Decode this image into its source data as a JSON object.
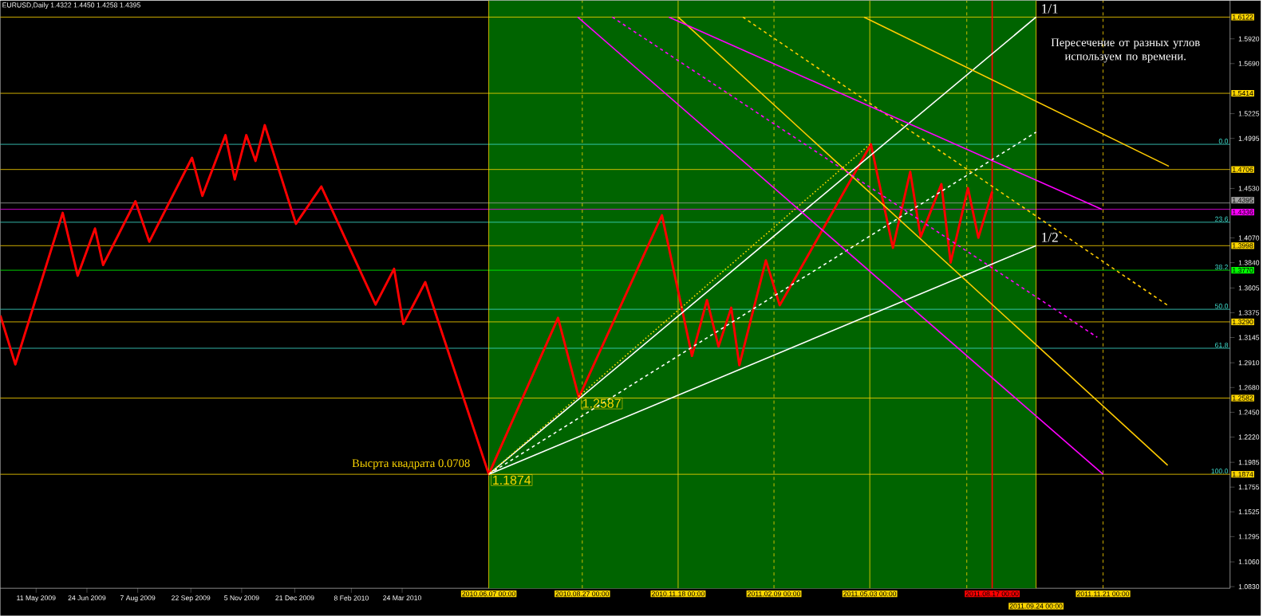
{
  "chart_data": {
    "type": "line",
    "title": "EURUSD,Daily  1.4322 1.4450 1.4258 1.4395",
    "xlim": [
      "2009-04-10",
      "2012-03-10"
    ],
    "ylim": [
      1.0815,
      1.6275
    ],
    "xticks": [
      {
        "value": "2009-05-11",
        "label": "11 May 2009"
      },
      {
        "value": "2009-06-24",
        "label": "24 Jun 2009"
      },
      {
        "value": "2009-08-07",
        "label": "7 Aug 2009"
      },
      {
        "value": "2009-09-22",
        "label": "22 Sep 2009"
      },
      {
        "value": "2009-11-05",
        "label": "5 Nov 2009"
      },
      {
        "value": "2009-12-21",
        "label": "21 Dec 2009"
      },
      {
        "value": "2010-02-08",
        "label": "8 Feb 2010"
      },
      {
        "value": "2010-03-24",
        "label": "24 Mar 2010"
      }
    ],
    "yticks": [
      {
        "value": 1.083,
        "label": "1.0830"
      },
      {
        "value": 1.106,
        "label": "1.1060"
      },
      {
        "value": 1.1295,
        "label": "1.1295"
      },
      {
        "value": 1.1525,
        "label": "1.1525"
      },
      {
        "value": 1.1755,
        "label": "1.1755"
      },
      {
        "value": 1.1985,
        "label": "1.1985"
      },
      {
        "value": 1.222,
        "label": "1.2220"
      },
      {
        "value": 1.245,
        "label": "1.2450"
      },
      {
        "value": 1.268,
        "label": "1.2680"
      },
      {
        "value": 1.291,
        "label": "1.2910"
      },
      {
        "value": 1.3145,
        "label": "1.3145"
      },
      {
        "value": 1.3375,
        "label": "1.3375"
      },
      {
        "value": 1.3605,
        "label": "1.3605"
      },
      {
        "value": 1.384,
        "label": "1.3840"
      },
      {
        "value": 1.407,
        "label": "1.4070"
      },
      {
        "value": 1.453,
        "label": "1.4530"
      },
      {
        "value": 1.4995,
        "label": "1.4995"
      },
      {
        "value": 1.5225,
        "label": "1.5225"
      },
      {
        "value": 1.569,
        "label": "1.5690"
      },
      {
        "value": 1.592,
        "label": "1.5920"
      }
    ],
    "bands": [
      {
        "axis": "x",
        "from": "2010-06-07",
        "to": "2011-09-24",
        "color": "#006400"
      }
    ],
    "ref_lines": [
      {
        "axis": "y",
        "value": 1.6122,
        "label": "1.6122",
        "color": "#ffd700"
      },
      {
        "axis": "y",
        "value": 1.5414,
        "label": "1.5414",
        "color": "#ffd700"
      },
      {
        "axis": "y",
        "value": 1.4706,
        "label": "1.4706",
        "color": "#ffd700"
      },
      {
        "axis": "y",
        "value": 1.4395,
        "label": "1.4395",
        "color": "#a0a0a0"
      },
      {
        "axis": "y",
        "value": 1.4336,
        "label": "1.4336",
        "color": "#ff00ff"
      },
      {
        "axis": "y",
        "value": 1.3998,
        "label": "1.3998",
        "color": "#ffd700"
      },
      {
        "axis": "y",
        "value": 1.377,
        "label": "1.3770",
        "color": "#00ff00"
      },
      {
        "axis": "y",
        "value": 1.329,
        "label": "1.3290",
        "color": "#ffd700"
      },
      {
        "axis": "y",
        "value": 1.2582,
        "label": "1.2582",
        "color": "#ffd700"
      },
      {
        "axis": "y",
        "value": 1.1874,
        "label": "1.1874",
        "color": "#ffd700"
      },
      {
        "axis": "y",
        "value": 1.494,
        "color": "#40e0d0"
      },
      {
        "axis": "y",
        "value": 1.4216,
        "color": "#40e0d0"
      },
      {
        "axis": "y",
        "value": 1.3407,
        "color": "#40e0d0"
      },
      {
        "axis": "y",
        "value": 1.3045,
        "color": "#40e0d0"
      },
      {
        "axis": "x",
        "value": "2010-06-07",
        "label": "2010.06.07 00:00",
        "color": "#ffd700",
        "line_style": "solid"
      },
      {
        "axis": "x",
        "value": "2010-08-27",
        "label": "2010.08.27 00:00",
        "color": "#ffd700",
        "line_style": "dashed"
      },
      {
        "axis": "x",
        "value": "2010-11-18",
        "label": "2010.11.18 00:00",
        "color": "#ffd700",
        "line_style": "solid"
      },
      {
        "axis": "x",
        "value": "2011-02-09",
        "label": "2011.02.09 00:00",
        "color": "#ffd700",
        "line_style": "dashed"
      },
      {
        "axis": "x",
        "value": "2011-05-03",
        "label": "2011.05.03 00:00",
        "color": "#ffd700",
        "line_style": "solid"
      },
      {
        "axis": "x",
        "value": "2011-07-26",
        "color": "#ffd700",
        "line_style": "dashed"
      },
      {
        "axis": "x",
        "value": "2011-08-17",
        "label": "2011.08.17 00:00",
        "color": "#ff0000",
        "line_style": "solid"
      },
      {
        "axis": "x",
        "value": "2011-09-24",
        "label": "2011.09.24 00:00",
        "color": "#ffd700",
        "line_style": "solid"
      },
      {
        "axis": "x",
        "value": "2011-11-21",
        "label": "2011.11.21 00:00",
        "color": "#ffd700",
        "line_style": "dashed"
      }
    ],
    "series": [
      {
        "color": "#ff0000",
        "line_style": "solid",
        "x": [
          "2009-04-10",
          "2009-04-23",
          "2009-06-03",
          "2009-06-16",
          "2009-07-01",
          "2009-07-08",
          "2009-08-05",
          "2009-08-17",
          "2009-09-23",
          "2009-10-02",
          "2009-10-22",
          "2009-10-30",
          "2009-11-09",
          "2009-11-17",
          "2009-11-25",
          "2009-12-22",
          "2010-01-13",
          "2010-03-01",
          "2010-03-17",
          "2010-03-25",
          "2010-04-13",
          "2010-06-07",
          "2010-08-06",
          "2010-08-24",
          "2010-11-04",
          "2010-11-30",
          "2010-12-13",
          "2010-12-23",
          "2011-01-03",
          "2011-01-10",
          "2011-02-02",
          "2011-02-14",
          "2011-05-04",
          "2011-05-23",
          "2011-06-07",
          "2011-06-16",
          "2011-07-04",
          "2011-07-12",
          "2011-07-27",
          "2011-08-05",
          "2011-08-17"
        ],
        "values": [
          1.335,
          1.2895,
          1.4303,
          1.3718,
          1.4158,
          1.3819,
          1.4411,
          1.4035,
          1.4815,
          1.4461,
          1.5025,
          1.4613,
          1.5025,
          1.4786,
          1.5118,
          1.4201,
          1.4548,
          1.3451,
          1.3783,
          1.327,
          1.366,
          1.1874,
          1.3328,
          1.2587,
          1.4281,
          1.2974,
          1.3494,
          1.3061,
          1.3422,
          1.2887,
          1.3862,
          1.3444,
          1.494,
          1.3978,
          1.4685,
          1.4079,
          1.457,
          1.3841,
          1.4534,
          1.4072,
          1.45
        ]
      },
      {
        "color": "#ffffff",
        "line_style": "solid",
        "x": [
          "2010-06-07",
          "2011-09-24"
        ],
        "values": [
          1.1874,
          1.6122
        ]
      },
      {
        "color": "#ffffff",
        "line_style": "solid",
        "x": [
          "2010-06-07",
          "2011-09-24"
        ],
        "values": [
          1.1874,
          1.3998
        ]
      },
      {
        "color": "#ffffff",
        "line_style": "dashed",
        "x": [
          "2010-06-07",
          "2011-09-24"
        ],
        "values": [
          1.1874,
          1.5053
        ]
      },
      {
        "color": "#ffd700",
        "line_style": "dotted",
        "x": [
          "2010-06-07",
          "2011-05-03"
        ],
        "values": [
          1.1874,
          1.494
        ]
      },
      {
        "color": "#ffcc00",
        "line_style": "solid",
        "x": [
          "2011-04-28",
          "2012-01-17"
        ],
        "values": [
          1.6122,
          1.4736
        ]
      },
      {
        "color": "#ffcc00",
        "line_style": "solid",
        "x": [
          "2010-11-18",
          "2012-01-16"
        ],
        "values": [
          1.6122,
          1.1958
        ]
      },
      {
        "color": "#ffcc00",
        "line_style": "dashed",
        "x": [
          "2011-01-13",
          "2012-01-17"
        ],
        "values": [
          1.6122,
          1.3436
        ]
      },
      {
        "color": "#ff00ff",
        "line_style": "solid",
        "x": [
          "2010-11-10",
          "2011-11-20"
        ],
        "values": [
          1.6122,
          1.4336
        ]
      },
      {
        "color": "#ff00ff",
        "line_style": "solid",
        "x": [
          "2010-08-23",
          "2011-11-21"
        ],
        "values": [
          1.6122,
          1.1874
        ]
      },
      {
        "color": "#ff00ff",
        "line_style": "dashed",
        "x": [
          "2010-09-22",
          "2011-11-16"
        ],
        "values": [
          1.6122,
          1.3147
        ]
      }
    ],
    "annotations": [
      {
        "text": "Высрта квадрата 0.0708",
        "x": "2010-06-07",
        "y": 1.1874
      },
      "Пересечение от разных углов используем по времени.",
      {
        "text": "1/1",
        "x": "2011-09-24",
        "y": 1.6122
      },
      {
        "text": "1/2",
        "x": "2011-09-24",
        "y": 1.3998
      },
      {
        "text": "1.2587",
        "x": "2010-08-24",
        "y": 1.2587
      },
      {
        "text": "1.1874",
        "x": "2010-06-07",
        "y": 1.1874
      },
      {
        "text": "0.0",
        "x": "2012-03-10",
        "y": 1.494
      },
      {
        "text": "23.6",
        "x": "2012-03-10",
        "y": 1.4216
      },
      {
        "text": "38.2",
        "x": "2012-03-10",
        "y": 1.377
      },
      {
        "text": "50.0",
        "x": "2012-03-10",
        "y": 1.3407
      },
      {
        "text": "61.8",
        "x": "2012-03-10",
        "y": 1.3045
      },
      {
        "text": "100.0",
        "x": "2012-03-10",
        "y": 1.1874
      }
    ]
  }
}
